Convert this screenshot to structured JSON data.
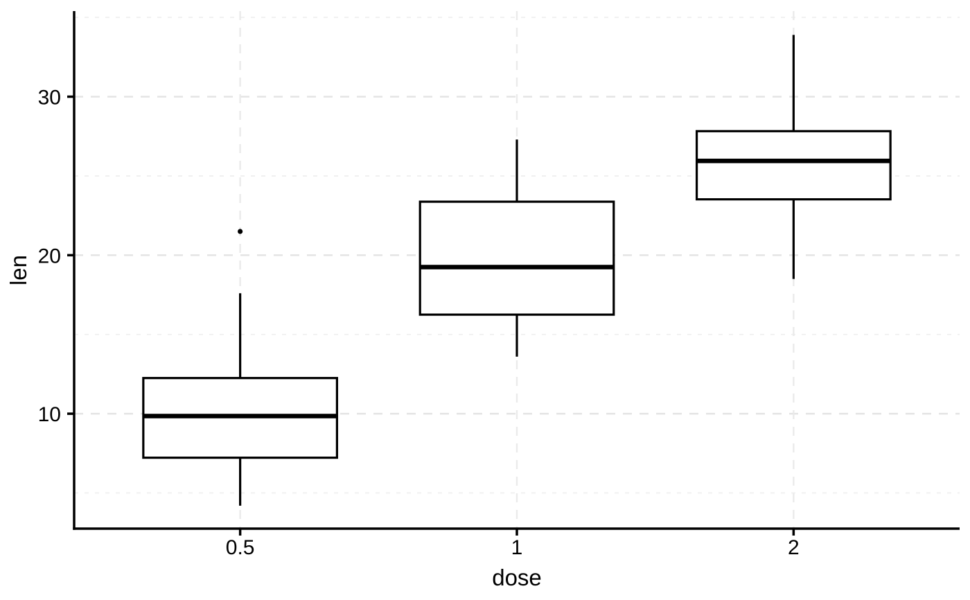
{
  "chart_data": {
    "type": "boxplot",
    "title": "",
    "xlabel": "dose",
    "ylabel": "len",
    "categories": [
      "0.5",
      "1",
      "2"
    ],
    "series": [
      {
        "category": "0.5",
        "whisker_low": 4.2,
        "q1": 7.225,
        "median": 9.85,
        "q3": 12.25,
        "whisker_high": 17.6,
        "outliers": [
          21.5
        ]
      },
      {
        "category": "1",
        "whisker_low": 13.6,
        "q1": 16.25,
        "median": 19.25,
        "q3": 23.375,
        "whisker_high": 27.3,
        "outliers": []
      },
      {
        "category": "2",
        "whisker_low": 18.5,
        "q1": 23.525,
        "median": 25.95,
        "q3": 27.825,
        "whisker_high": 33.9,
        "outliers": []
      }
    ],
    "y_major_ticks": [
      10,
      20,
      30
    ],
    "y_major_tick_labels": [
      "10",
      "20",
      "30"
    ],
    "y_minor_ticks": [
      5,
      15,
      25,
      35
    ],
    "ylim": [
      2.75,
      35.4
    ],
    "grid": {
      "horizontal_major": "dashed",
      "horizontal_minor": "dashed",
      "vertical_at_categories": "dashed"
    },
    "legend": "none",
    "colors": {
      "background": "#ffffff",
      "panel_background": "#ffffff",
      "box_fill": "#ffffff",
      "box_stroke": "#000000",
      "median": "#000000",
      "whisker": "#000000",
      "outlier": "#000000",
      "grid_major": "#e3e3e3",
      "grid_minor": "#efefef",
      "grid_vertical": "#eaeaea",
      "axis_line": "#000000",
      "text": "#000000"
    }
  }
}
